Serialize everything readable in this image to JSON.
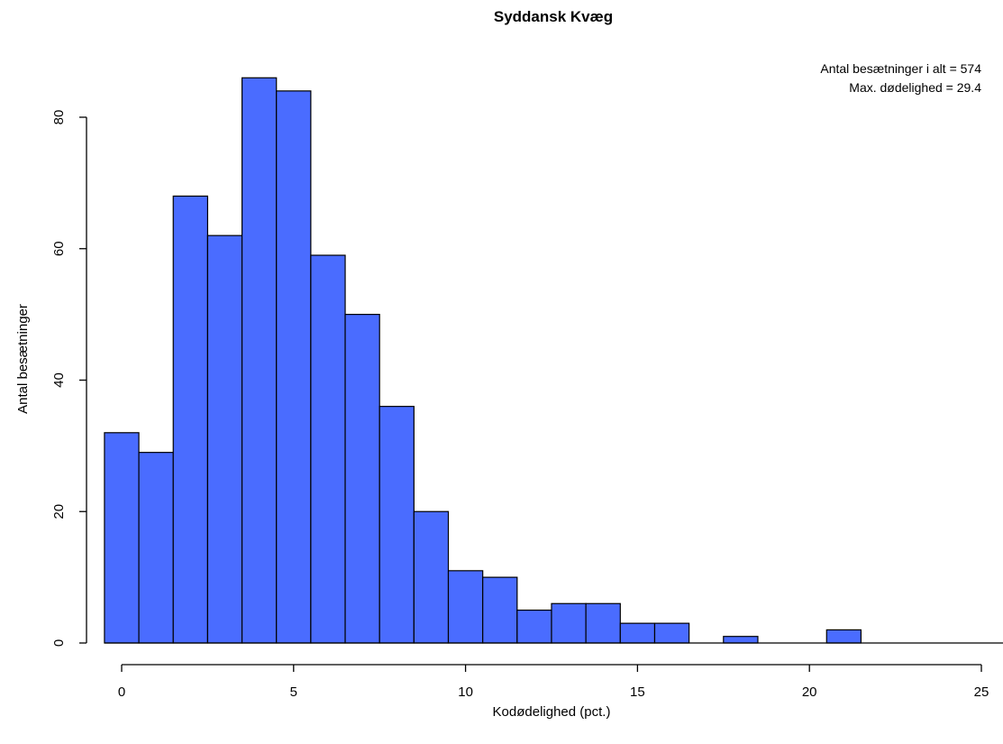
{
  "chart_data": {
    "type": "bar",
    "title": "Syddansk Kvæg",
    "xlabel": "Kodødelighed (pct.)",
    "ylabel": "Antal besætninger",
    "bin_width": 1,
    "bins": [
      {
        "from": -0.5,
        "to": 0.5,
        "count": 32
      },
      {
        "from": 0.5,
        "to": 1.5,
        "count": 29
      },
      {
        "from": 1.5,
        "to": 2.5,
        "count": 68
      },
      {
        "from": 2.5,
        "to": 3.5,
        "count": 62
      },
      {
        "from": 3.5,
        "to": 4.5,
        "count": 86
      },
      {
        "from": 4.5,
        "to": 5.5,
        "count": 84
      },
      {
        "from": 5.5,
        "to": 6.5,
        "count": 59
      },
      {
        "from": 6.5,
        "to": 7.5,
        "count": 50
      },
      {
        "from": 7.5,
        "to": 8.5,
        "count": 36
      },
      {
        "from": 8.5,
        "to": 9.5,
        "count": 20
      },
      {
        "from": 9.5,
        "to": 10.5,
        "count": 11
      },
      {
        "from": 10.5,
        "to": 11.5,
        "count": 10
      },
      {
        "from": 11.5,
        "to": 12.5,
        "count": 5
      },
      {
        "from": 12.5,
        "to": 13.5,
        "count": 6
      },
      {
        "from": 13.5,
        "to": 14.5,
        "count": 6
      },
      {
        "from": 14.5,
        "to": 15.5,
        "count": 3
      },
      {
        "from": 15.5,
        "to": 16.5,
        "count": 3
      },
      {
        "from": 16.5,
        "to": 17.5,
        "count": 0
      },
      {
        "from": 17.5,
        "to": 18.5,
        "count": 1
      },
      {
        "from": 18.5,
        "to": 19.5,
        "count": 0
      },
      {
        "from": 19.5,
        "to": 20.5,
        "count": 0
      },
      {
        "from": 20.5,
        "to": 21.5,
        "count": 2
      },
      {
        "from": 21.5,
        "to": 22.5,
        "count": 0
      },
      {
        "from": 22.5,
        "to": 23.5,
        "count": 0
      },
      {
        "from": 23.5,
        "to": 24.5,
        "count": 0
      },
      {
        "from": 24.5,
        "to": 25.5,
        "count": 0
      }
    ],
    "xlim": [
      -0.5,
      25.5
    ],
    "ylim": [
      0,
      90
    ],
    "x_ticks": [
      0,
      5,
      10,
      15,
      20,
      25
    ],
    "y_ticks": [
      0,
      20,
      40,
      60,
      80
    ],
    "annotations": [
      "Antal besætninger i alt = 574",
      "Max. dødelighed = 29.4"
    ],
    "bar_color": "#4a6cff",
    "bar_edge_color": "#000000",
    "grid": false
  }
}
